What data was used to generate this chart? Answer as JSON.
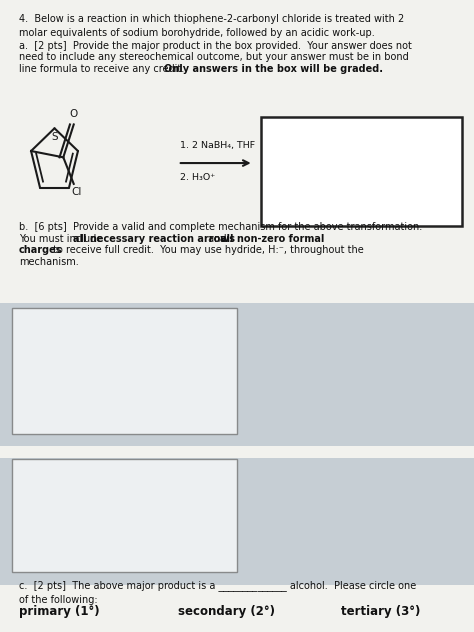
{
  "bg_color": "#cdd4db",
  "paper_color": "#f2f2ee",
  "intro_text": "4.  Below is a reaction in which thiophene-2-carbonyl chloride is treated with 2\nmolar equivalents of sodium borohydride, followed by an acidic work-up.",
  "part_a_line1": "a.  [2 pts]  Provide the major product in the box provided.  Your answer does not",
  "part_a_line2": "need to include any stereochemical outcome, but your answer must be in bond",
  "part_a_line3_regular": "line formula to receive any credit.  ",
  "part_a_line3_bold": "Only answers in the box will be graded.",
  "reagent_line1": "1. 2 NaBH₄, THF",
  "reagent_line2": "2. H₃O⁺",
  "part_b_line1": "b.  [6 pts]  Provide a valid and complete mechanism for the above transformation.",
  "part_b_line2_reg1": "You must include ",
  "part_b_line2_bold1": "all necessary reaction arrows",
  "part_b_line2_reg2": " and ",
  "part_b_line2_bold2": "all non-zero formal",
  "part_b_line3_bold": "charges",
  "part_b_line3_reg": " to receive full credit.  You may use hydride, H:⁻, throughout the",
  "part_b_line4": "mechanism.",
  "part_c_text": "c.  [2 pts]  The above major product is a ______________ alcohol.  Please circle one\nof the following:",
  "choice1": "primary (1°)",
  "choice2": "secondary (2°)",
  "choice3": "tertiary (3°)",
  "text_color": "#111111",
  "ring_color": "#1a1a1a",
  "mid_gray": "#b8c2cc",
  "low_gray": "#b8c2cc"
}
